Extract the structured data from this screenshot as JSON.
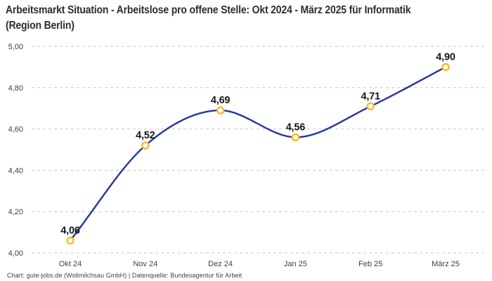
{
  "header": {
    "title": "Arbeitsmarkt Situation - Arbeitslose pro offene Stelle: Okt 2024 - März 2025 für Informatik (Region Berlin)"
  },
  "footer": {
    "attribution": "Chart: gute-jobs.de (Wollmilchsau GmbH) | Datenquelle: Bundesagentur für Arbeit"
  },
  "chart_data": {
    "type": "line",
    "title": "Arbeitsmarkt Situation - Arbeitslose pro offene Stelle: Okt 2024 - März 2025 für Informatik (Region Berlin)",
    "categories": [
      "Okt 24",
      "Nov 24",
      "Dez 24",
      "Jan 25",
      "Feb 25",
      "März 25"
    ],
    "values": [
      4.06,
      4.52,
      4.69,
      4.56,
      4.71,
      4.9
    ],
    "value_labels": [
      "4,06",
      "4,52",
      "4,69",
      "4,56",
      "4,71",
      "4,90"
    ],
    "yticks": [
      4.0,
      4.2,
      4.4,
      4.6,
      4.8,
      5.0
    ],
    "ytick_labels": [
      "4,00",
      "4,20",
      "4,40",
      "4,60",
      "4,80",
      "5,00"
    ],
    "ylim": [
      4.0,
      5.0
    ],
    "xlabel": "",
    "ylabel": "",
    "legend": "none",
    "grid": "horizontal-dashed",
    "curve": "smooth-monotone",
    "colors": {
      "line": "#2136a4",
      "marker_ring": "#f8ba1c",
      "marker_fill": "#ffffff",
      "grid": "#c9c9c9",
      "axis_text": "#3f3f3f",
      "value_label_text": "#161616"
    }
  }
}
